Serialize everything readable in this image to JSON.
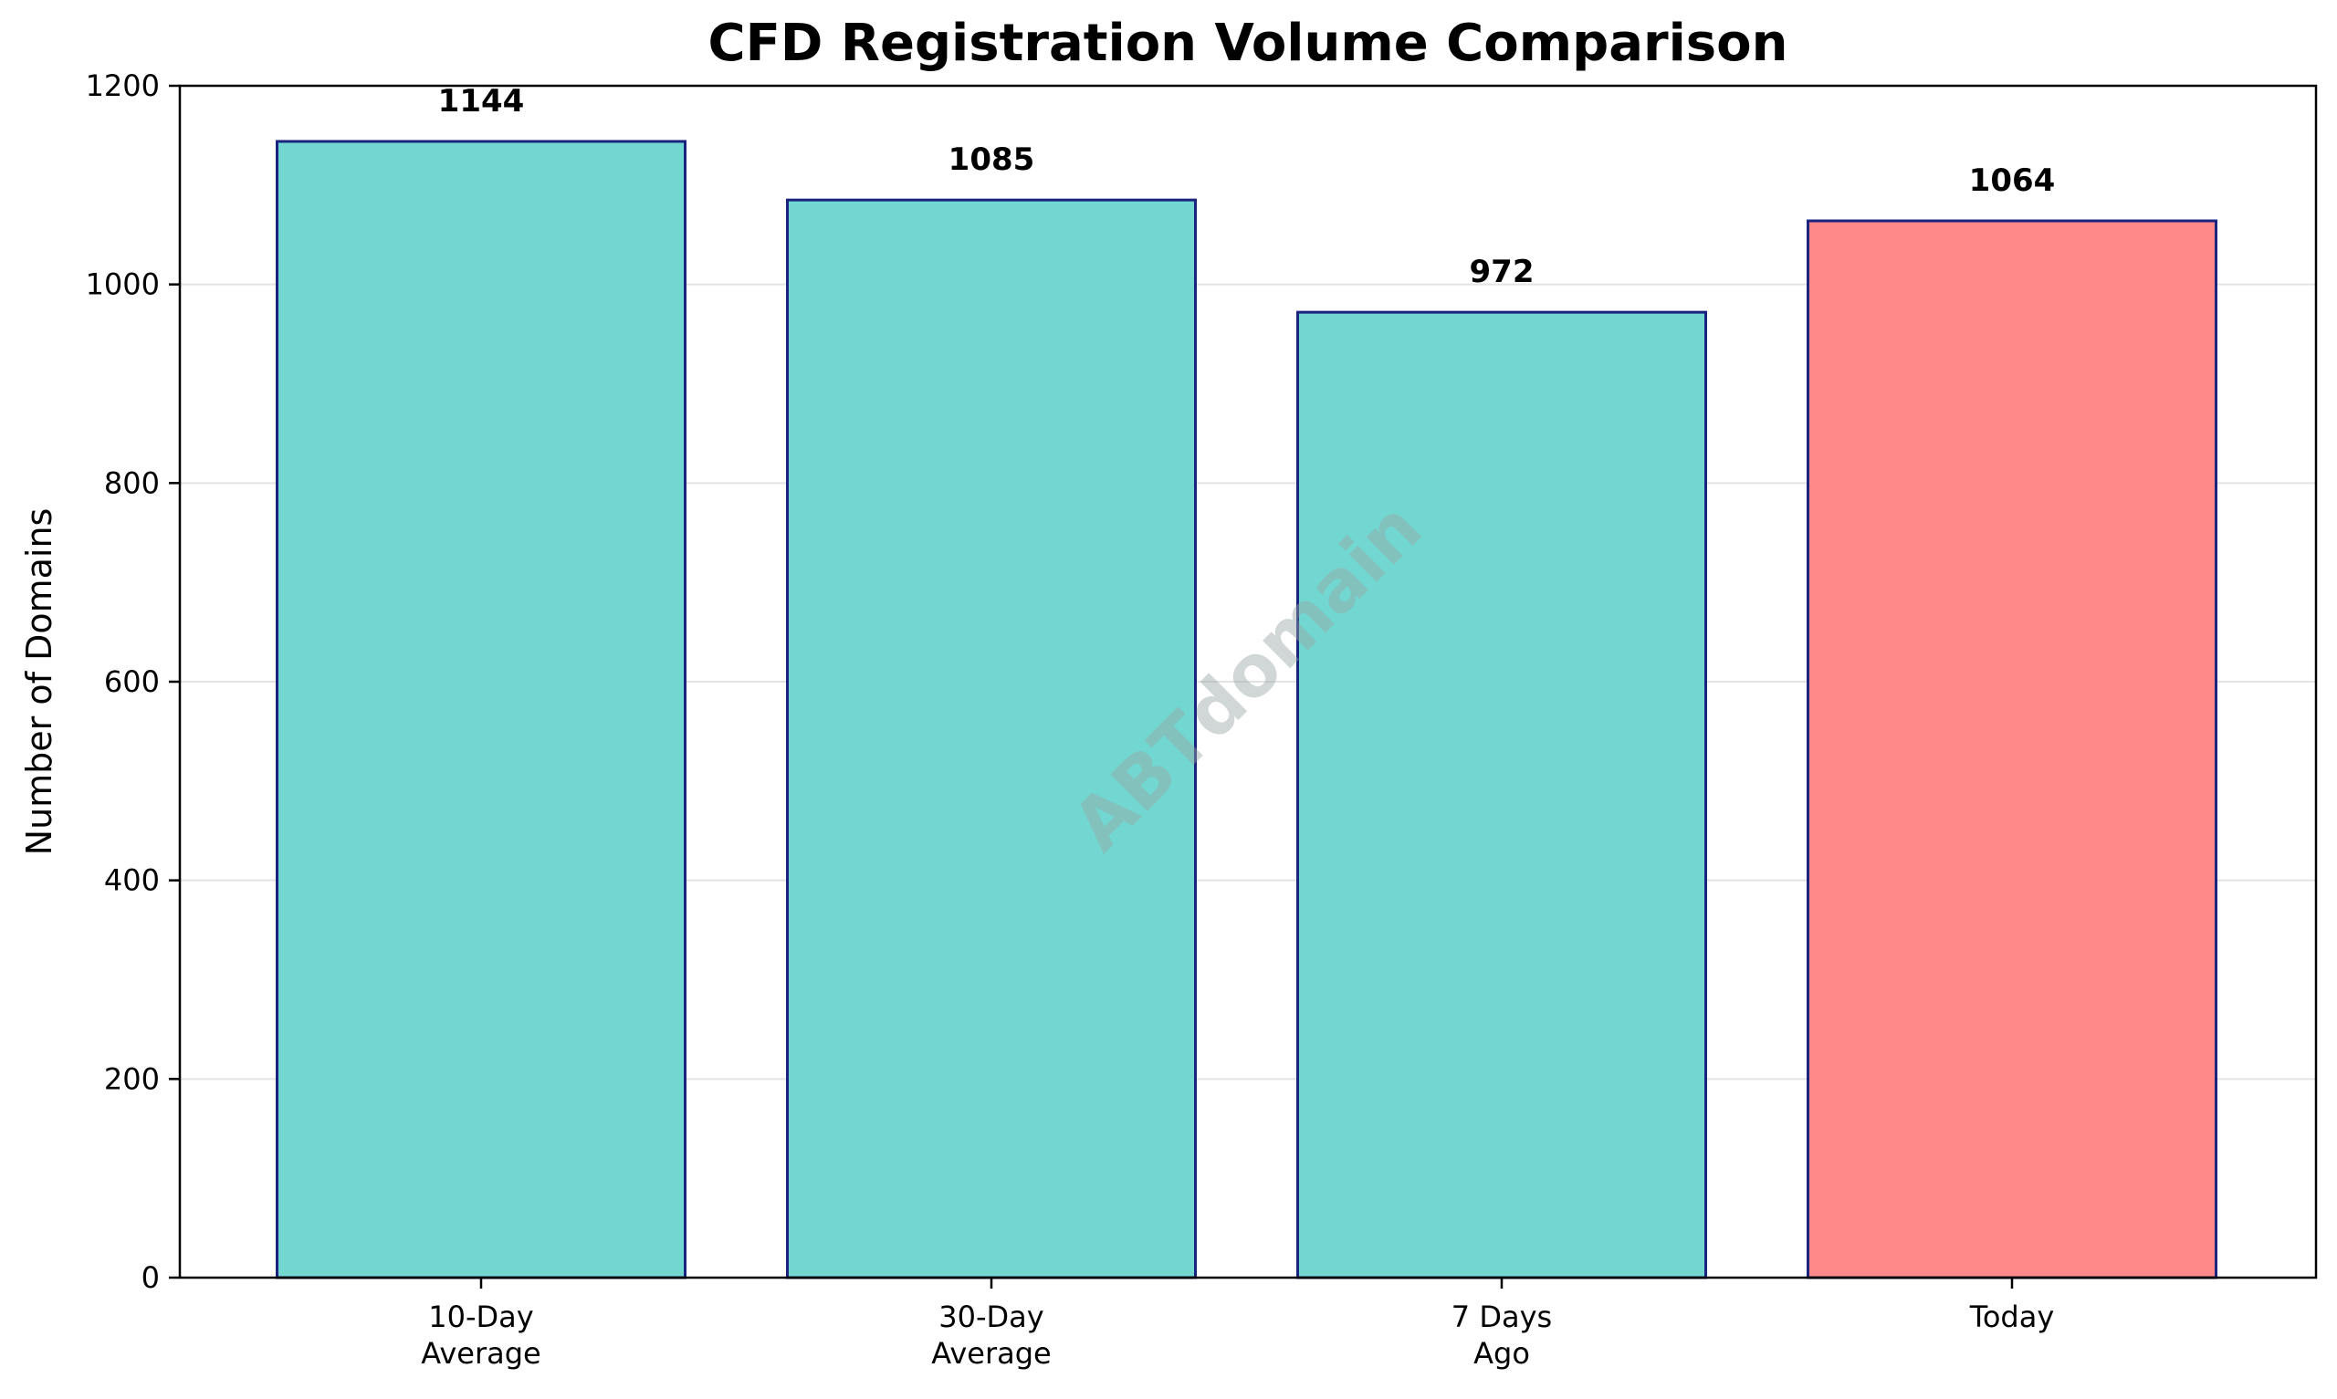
{
  "chart_data": {
    "type": "bar",
    "title": "CFD Registration Volume Comparison",
    "xlabel": "",
    "ylabel": "Number of Domains",
    "categories": [
      [
        "10-Day",
        "Average"
      ],
      [
        "30-Day",
        "Average"
      ],
      [
        "7 Days",
        "Ago"
      ],
      [
        "Today"
      ]
    ],
    "values": [
      1144,
      1085,
      972,
      1064
    ],
    "data_labels": [
      "1144",
      "1085",
      "972",
      "1064"
    ],
    "bar_colors": [
      "#72d7d0",
      "#72d7d0",
      "#72d7d0",
      "#ff8888"
    ],
    "bar_edge_color": "#1a237e",
    "ylim": [
      0,
      1200
    ],
    "yticks": [
      0,
      200,
      400,
      600,
      800,
      1000,
      1200
    ],
    "grid": "horizontal",
    "watermark": "ABTdomain"
  }
}
